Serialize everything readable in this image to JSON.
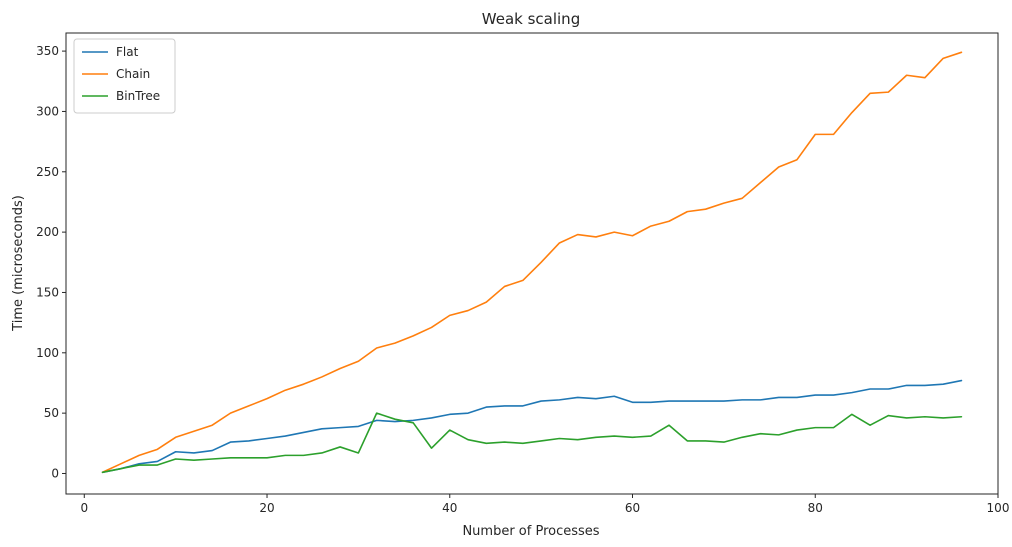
{
  "chart_data": {
    "type": "line",
    "title": "Weak scaling",
    "xlabel": "Number of Processes",
    "ylabel": "Time (microseconds)",
    "xlim": [
      -2,
      100
    ],
    "ylim": [
      -17,
      365
    ],
    "xticks": [
      0,
      20,
      40,
      60,
      80,
      100
    ],
    "yticks": [
      0,
      50,
      100,
      150,
      200,
      250,
      300,
      350
    ],
    "grid": false,
    "legend_position": "top-left",
    "x": [
      2,
      4,
      6,
      8,
      10,
      12,
      14,
      16,
      18,
      20,
      22,
      24,
      26,
      28,
      30,
      32,
      34,
      36,
      38,
      40,
      42,
      44,
      46,
      48,
      50,
      52,
      54,
      56,
      58,
      60,
      62,
      64,
      66,
      68,
      70,
      72,
      74,
      76,
      78,
      80,
      82,
      84,
      86,
      88,
      90,
      92,
      94,
      96
    ],
    "series": [
      {
        "name": "Flat",
        "color": "#1f77b4",
        "values": [
          1,
          4,
          8,
          10,
          18,
          17,
          19,
          26,
          27,
          29,
          31,
          34,
          37,
          38,
          39,
          44,
          43,
          44,
          46,
          49,
          50,
          55,
          56,
          56,
          60,
          61,
          63,
          62,
          64,
          59,
          59,
          60,
          60,
          60,
          60,
          61,
          61,
          63,
          63,
          65,
          65,
          67,
          70,
          70,
          73,
          73,
          74,
          77
        ]
      },
      {
        "name": "Chain",
        "color": "#ff7f0e",
        "values": [
          1,
          8,
          15,
          20,
          30,
          35,
          40,
          50,
          56,
          62,
          69,
          74,
          80,
          87,
          93,
          104,
          108,
          114,
          121,
          131,
          135,
          142,
          155,
          160,
          175,
          191,
          198,
          196,
          200,
          197,
          205,
          209,
          217,
          219,
          224,
          228,
          241,
          254,
          260,
          281,
          281,
          299,
          315,
          316,
          330,
          328,
          344,
          349
        ]
      },
      {
        "name": "BinTree",
        "color": "#2ca02c",
        "values": [
          1,
          4,
          7,
          7,
          12,
          11,
          12,
          13,
          13,
          13,
          15,
          15,
          17,
          22,
          17,
          50,
          45,
          42,
          21,
          36,
          28,
          25,
          26,
          25,
          27,
          29,
          28,
          30,
          31,
          30,
          31,
          40,
          27,
          27,
          26,
          30,
          33,
          32,
          36,
          38,
          38,
          49,
          40,
          48,
          46,
          47,
          46,
          47
        ]
      }
    ]
  }
}
